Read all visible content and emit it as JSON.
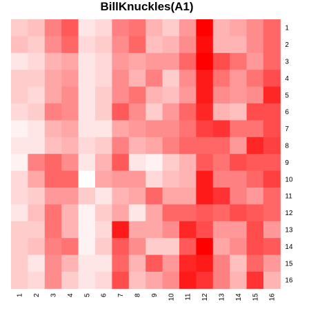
{
  "chart_data": {
    "type": "heatmap",
    "title": "BillKnuckles(A1)",
    "xlabel": "",
    "ylabel": "",
    "x_categories": [
      "1",
      "2",
      "3",
      "4",
      "5",
      "6",
      "7",
      "8",
      "9",
      "10",
      "11",
      "12",
      "13",
      "14",
      "15",
      "16"
    ],
    "y_categories": [
      "1",
      "2",
      "3",
      "4",
      "5",
      "6",
      "7",
      "8",
      "9",
      "10",
      "11",
      "12",
      "13",
      "14",
      "15",
      "16"
    ],
    "value_range": [
      0,
      1
    ],
    "colors": {
      "low": "#ffffff",
      "high": "#ff0000"
    },
    "legend": "none",
    "grid": false,
    "values": [
      [
        0.2,
        0.25,
        0.5,
        0.65,
        0.1,
        0.15,
        0.5,
        0.55,
        0.3,
        0.2,
        0.4,
        1.0,
        0.3,
        0.35,
        0.45,
        0.6
      ],
      [
        0.25,
        0.2,
        0.45,
        0.6,
        0.15,
        0.2,
        0.45,
        0.6,
        0.25,
        0.3,
        0.45,
        0.95,
        0.3,
        0.3,
        0.45,
        0.6
      ],
      [
        0.1,
        0.15,
        0.3,
        0.35,
        0.1,
        0.15,
        0.4,
        0.35,
        0.4,
        0.4,
        0.6,
        1.0,
        0.7,
        0.55,
        0.4,
        0.6
      ],
      [
        0.2,
        0.2,
        0.35,
        0.4,
        0.1,
        0.15,
        0.45,
        0.3,
        0.5,
        0.2,
        0.45,
        0.9,
        0.55,
        0.4,
        0.55,
        0.7
      ],
      [
        0.2,
        0.15,
        0.35,
        0.45,
        0.1,
        0.2,
        0.45,
        0.55,
        0.3,
        0.25,
        0.4,
        0.9,
        0.45,
        0.4,
        0.45,
        0.85
      ],
      [
        0.15,
        0.2,
        0.5,
        0.45,
        0.1,
        0.2,
        0.65,
        0.45,
        0.2,
        0.4,
        0.6,
        0.85,
        0.3,
        0.25,
        0.7,
        0.7
      ],
      [
        0.05,
        0.1,
        0.3,
        0.35,
        0.1,
        0.1,
        0.35,
        0.4,
        0.45,
        0.45,
        0.55,
        0.75,
        0.8,
        0.55,
        0.55,
        0.7
      ],
      [
        0.1,
        0.1,
        0.25,
        0.3,
        0.15,
        0.2,
        0.5,
        0.3,
        0.35,
        0.5,
        0.6,
        0.6,
        0.6,
        0.4,
        0.85,
        0.75
      ],
      [
        0.05,
        0.5,
        0.6,
        0.45,
        0.1,
        0.3,
        0.65,
        0.1,
        0.05,
        0.2,
        0.3,
        0.65,
        0.55,
        0.7,
        0.65,
        0.65
      ],
      [
        0.15,
        0.35,
        0.6,
        0.6,
        0.0,
        0.35,
        0.4,
        0.4,
        0.15,
        0.25,
        0.3,
        0.9,
        0.5,
        0.5,
        0.6,
        0.75
      ],
      [
        0.15,
        0.2,
        0.4,
        0.4,
        0.2,
        0.1,
        0.3,
        0.35,
        0.6,
        0.35,
        0.35,
        0.9,
        0.8,
        0.5,
        0.4,
        0.6
      ],
      [
        0.1,
        0.25,
        0.55,
        0.3,
        0.05,
        0.2,
        0.35,
        0.1,
        0.35,
        0.6,
        0.6,
        0.65,
        0.6,
        0.7,
        0.65,
        0.6
      ],
      [
        0.2,
        0.2,
        0.55,
        0.3,
        0.05,
        0.15,
        0.9,
        0.35,
        0.35,
        0.45,
        0.85,
        0.7,
        0.4,
        0.4,
        0.7,
        0.4
      ],
      [
        0.2,
        0.25,
        0.5,
        0.55,
        0.05,
        0.2,
        0.65,
        0.45,
        0.2,
        0.2,
        0.65,
        1.0,
        0.35,
        0.45,
        0.7,
        0.65
      ],
      [
        0.2,
        0.1,
        0.45,
        0.3,
        0.1,
        0.1,
        0.6,
        0.3,
        0.65,
        0.4,
        0.85,
        0.9,
        0.5,
        0.25,
        0.6,
        0.4
      ],
      [
        0.2,
        0.15,
        0.45,
        0.2,
        0.1,
        0.15,
        0.7,
        0.25,
        0.35,
        0.45,
        0.9,
        0.8,
        0.5,
        0.3,
        0.8,
        0.3
      ]
    ]
  }
}
